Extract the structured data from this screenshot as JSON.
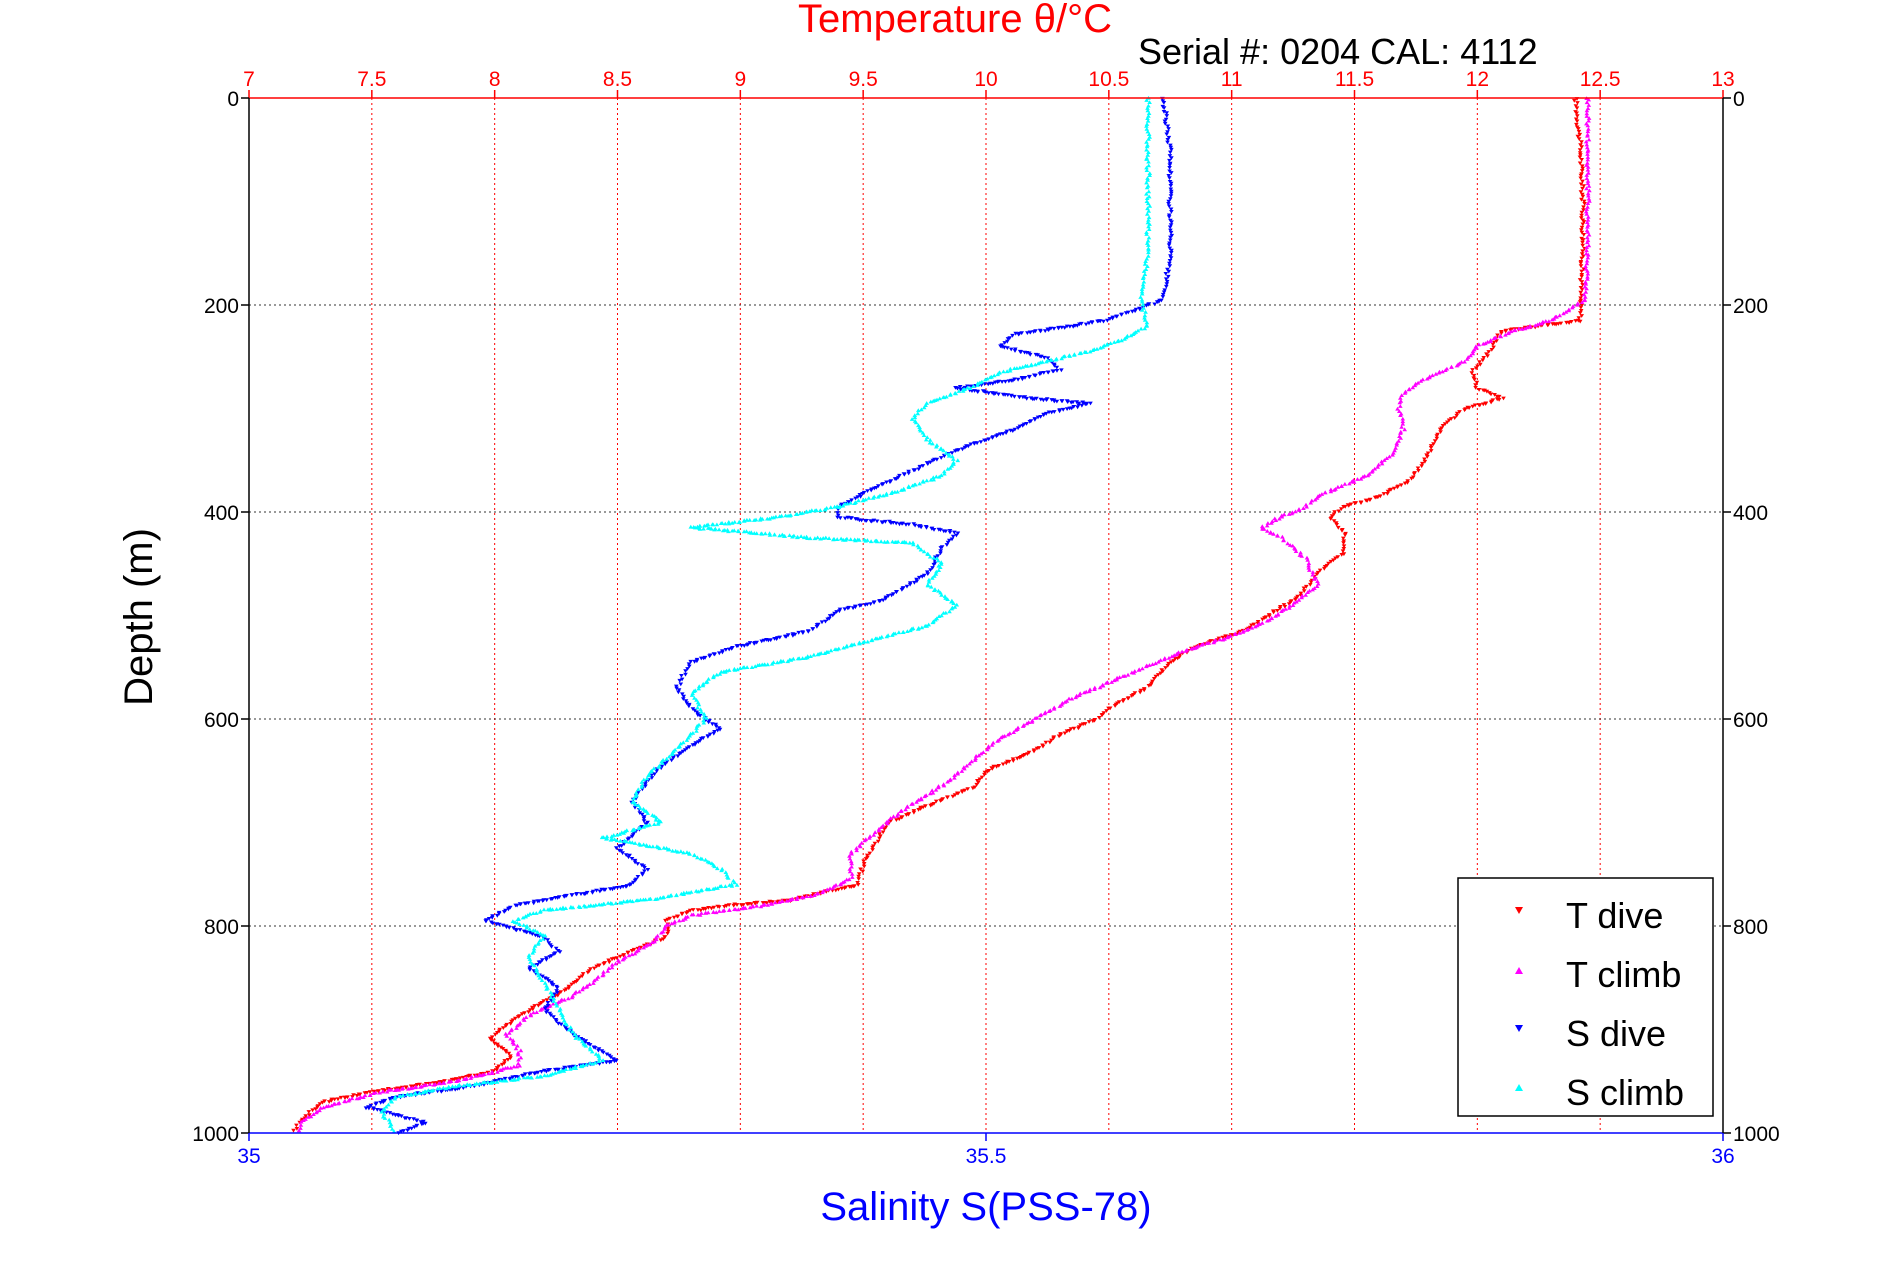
{
  "chart_data": {
    "type": "scatter",
    "title_top": "Temperature θ/°C",
    "subtitle": "Serial #: 0204  CAL: 4112",
    "xlabel_bottom": "Salinity S(PSS-78)",
    "ylabel": "Depth (m)",
    "ylim": [
      1000,
      0
    ],
    "temperature_axis": {
      "range": [
        7,
        13
      ],
      "ticks": [
        "7",
        "7.5",
        "8",
        "8.5",
        "9",
        "9.5",
        "10",
        "10.5",
        "11",
        "11.5",
        "12",
        "12.5",
        "13"
      ]
    },
    "salinity_axis": {
      "range": [
        35,
        36
      ],
      "ticks": [
        "35",
        "35.5",
        "36"
      ]
    },
    "depth_axis": {
      "ticks": [
        "0",
        "200",
        "400",
        "600",
        "800",
        "1000"
      ]
    },
    "grid": true,
    "legend_position": "bottom-right",
    "series": [
      {
        "name": "T dive",
        "axis": "temperature",
        "color": "#ff0000",
        "marker": "triangle-down",
        "points": [
          [
            12.4,
            0
          ],
          [
            12.42,
            50
          ],
          [
            12.43,
            100
          ],
          [
            12.43,
            150
          ],
          [
            12.42,
            195
          ],
          [
            12.42,
            215
          ],
          [
            12.1,
            225
          ],
          [
            12.05,
            245
          ],
          [
            11.98,
            265
          ],
          [
            12.0,
            280
          ],
          [
            12.1,
            290
          ],
          [
            11.95,
            300
          ],
          [
            11.85,
            320
          ],
          [
            11.8,
            345
          ],
          [
            11.72,
            370
          ],
          [
            11.6,
            385
          ],
          [
            11.45,
            395
          ],
          [
            11.4,
            405
          ],
          [
            11.46,
            420
          ],
          [
            11.45,
            440
          ],
          [
            11.35,
            460
          ],
          [
            11.28,
            480
          ],
          [
            11.15,
            500
          ],
          [
            11.05,
            515
          ],
          [
            10.85,
            530
          ],
          [
            10.75,
            545
          ],
          [
            10.65,
            570
          ],
          [
            10.5,
            590
          ],
          [
            10.45,
            600
          ],
          [
            10.3,
            615
          ],
          [
            10.2,
            630
          ],
          [
            10.0,
            650
          ],
          [
            9.95,
            665
          ],
          [
            9.8,
            680
          ],
          [
            9.7,
            690
          ],
          [
            9.6,
            700
          ],
          [
            9.55,
            720
          ],
          [
            9.5,
            740
          ],
          [
            9.48,
            760
          ],
          [
            9.2,
            775
          ],
          [
            8.95,
            780
          ],
          [
            8.8,
            785
          ],
          [
            8.7,
            795
          ],
          [
            8.7,
            810
          ],
          [
            8.55,
            825
          ],
          [
            8.4,
            840
          ],
          [
            8.3,
            860
          ],
          [
            8.15,
            880
          ],
          [
            8.05,
            895
          ],
          [
            7.98,
            910
          ],
          [
            8.07,
            925
          ],
          [
            8.0,
            940
          ],
          [
            7.8,
            950
          ],
          [
            7.5,
            960
          ],
          [
            7.3,
            970
          ],
          [
            7.2,
            990
          ],
          [
            7.18,
            1000
          ]
        ]
      },
      {
        "name": "T climb",
        "axis": "temperature",
        "color": "#ff00ff",
        "marker": "triangle-up",
        "points": [
          [
            12.45,
            0
          ],
          [
            12.45,
            50
          ],
          [
            12.45,
            100
          ],
          [
            12.45,
            150
          ],
          [
            12.44,
            195
          ],
          [
            12.3,
            215
          ],
          [
            12.15,
            225
          ],
          [
            12.0,
            240
          ],
          [
            11.95,
            255
          ],
          [
            11.8,
            270
          ],
          [
            11.7,
            285
          ],
          [
            11.68,
            300
          ],
          [
            11.7,
            320
          ],
          [
            11.65,
            345
          ],
          [
            11.55,
            365
          ],
          [
            11.35,
            385
          ],
          [
            11.3,
            395
          ],
          [
            11.2,
            405
          ],
          [
            11.12,
            415
          ],
          [
            11.2,
            425
          ],
          [
            11.3,
            445
          ],
          [
            11.35,
            470
          ],
          [
            11.25,
            490
          ],
          [
            11.15,
            505
          ],
          [
            11.0,
            520
          ],
          [
            10.8,
            535
          ],
          [
            10.65,
            550
          ],
          [
            10.5,
            565
          ],
          [
            10.35,
            580
          ],
          [
            10.2,
            600
          ],
          [
            10.05,
            620
          ],
          [
            9.95,
            640
          ],
          [
            9.85,
            660
          ],
          [
            9.75,
            675
          ],
          [
            9.65,
            690
          ],
          [
            9.55,
            710
          ],
          [
            9.45,
            730
          ],
          [
            9.45,
            755
          ],
          [
            9.3,
            770
          ],
          [
            9.1,
            780
          ],
          [
            8.95,
            785
          ],
          [
            8.8,
            790
          ],
          [
            8.7,
            800
          ],
          [
            8.65,
            815
          ],
          [
            8.5,
            835
          ],
          [
            8.4,
            855
          ],
          [
            8.3,
            870
          ],
          [
            8.15,
            885
          ],
          [
            8.05,
            905
          ],
          [
            8.1,
            920
          ],
          [
            8.1,
            935
          ],
          [
            7.85,
            950
          ],
          [
            7.55,
            960
          ],
          [
            7.3,
            975
          ],
          [
            7.22,
            990
          ],
          [
            7.2,
            1000
          ]
        ]
      },
      {
        "name": "S dive",
        "axis": "salinity",
        "color": "#0000ff",
        "marker": "triangle-down",
        "points": [
          [
            35.62,
            0
          ],
          [
            35.625,
            50
          ],
          [
            35.625,
            100
          ],
          [
            35.625,
            150
          ],
          [
            35.62,
            195
          ],
          [
            35.58,
            215
          ],
          [
            35.55,
            222
          ],
          [
            35.52,
            228
          ],
          [
            35.51,
            240
          ],
          [
            35.54,
            250
          ],
          [
            35.55,
            262
          ],
          [
            35.52,
            272
          ],
          [
            35.48,
            280
          ],
          [
            35.53,
            290
          ],
          [
            35.57,
            295
          ],
          [
            35.54,
            305
          ],
          [
            35.52,
            320
          ],
          [
            35.48,
            340
          ],
          [
            35.45,
            360
          ],
          [
            35.42,
            380
          ],
          [
            35.4,
            395
          ],
          [
            35.4,
            405
          ],
          [
            35.45,
            412
          ],
          [
            35.48,
            420
          ],
          [
            35.47,
            435
          ],
          [
            35.46,
            460
          ],
          [
            35.43,
            485
          ],
          [
            35.4,
            495
          ],
          [
            35.38,
            515
          ],
          [
            35.33,
            530
          ],
          [
            35.3,
            545
          ],
          [
            35.29,
            570
          ],
          [
            35.3,
            590
          ],
          [
            35.32,
            610
          ],
          [
            35.3,
            625
          ],
          [
            35.28,
            645
          ],
          [
            35.27,
            660
          ],
          [
            35.26,
            680
          ],
          [
            35.27,
            700
          ],
          [
            35.25,
            725
          ],
          [
            35.27,
            745
          ],
          [
            35.26,
            760
          ],
          [
            35.22,
            770
          ],
          [
            35.18,
            780
          ],
          [
            35.16,
            795
          ],
          [
            35.2,
            810
          ],
          [
            35.21,
            825
          ],
          [
            35.19,
            840
          ],
          [
            35.21,
            860
          ],
          [
            35.2,
            880
          ],
          [
            35.22,
            905
          ],
          [
            35.25,
            930
          ],
          [
            35.2,
            940
          ],
          [
            35.15,
            955
          ],
          [
            35.1,
            965
          ],
          [
            35.08,
            975
          ],
          [
            35.12,
            990
          ],
          [
            35.1,
            1000
          ]
        ]
      },
      {
        "name": "S climb",
        "axis": "salinity",
        "color": "#00ffff",
        "marker": "triangle-up",
        "points": [
          [
            35.61,
            0
          ],
          [
            35.61,
            50
          ],
          [
            35.61,
            100
          ],
          [
            35.61,
            150
          ],
          [
            35.605,
            195
          ],
          [
            35.61,
            220
          ],
          [
            35.59,
            235
          ],
          [
            35.57,
            245
          ],
          [
            35.54,
            255
          ],
          [
            35.51,
            265
          ],
          [
            35.49,
            280
          ],
          [
            35.46,
            295
          ],
          [
            35.45,
            310
          ],
          [
            35.46,
            330
          ],
          [
            35.48,
            350
          ],
          [
            35.47,
            365
          ],
          [
            35.44,
            380
          ],
          [
            35.4,
            395
          ],
          [
            35.36,
            405
          ],
          [
            35.3,
            415
          ],
          [
            35.38,
            425
          ],
          [
            35.45,
            430
          ],
          [
            35.47,
            450
          ],
          [
            35.46,
            470
          ],
          [
            35.48,
            490
          ],
          [
            35.46,
            510
          ],
          [
            35.42,
            525
          ],
          [
            35.38,
            540
          ],
          [
            35.32,
            555
          ],
          [
            35.3,
            575
          ],
          [
            35.31,
            600
          ],
          [
            35.29,
            630
          ],
          [
            35.27,
            655
          ],
          [
            35.26,
            680
          ],
          [
            35.28,
            700
          ],
          [
            35.24,
            715
          ],
          [
            35.3,
            730
          ],
          [
            35.32,
            745
          ],
          [
            35.33,
            760
          ],
          [
            35.27,
            775
          ],
          [
            35.2,
            785
          ],
          [
            35.18,
            795
          ],
          [
            35.2,
            810
          ],
          [
            35.19,
            830
          ],
          [
            35.2,
            855
          ],
          [
            35.21,
            880
          ],
          [
            35.22,
            905
          ],
          [
            35.24,
            930
          ],
          [
            35.2,
            945
          ],
          [
            35.14,
            955
          ],
          [
            35.1,
            965
          ],
          [
            35.09,
            980
          ],
          [
            35.1,
            1000
          ]
        ]
      }
    ]
  }
}
